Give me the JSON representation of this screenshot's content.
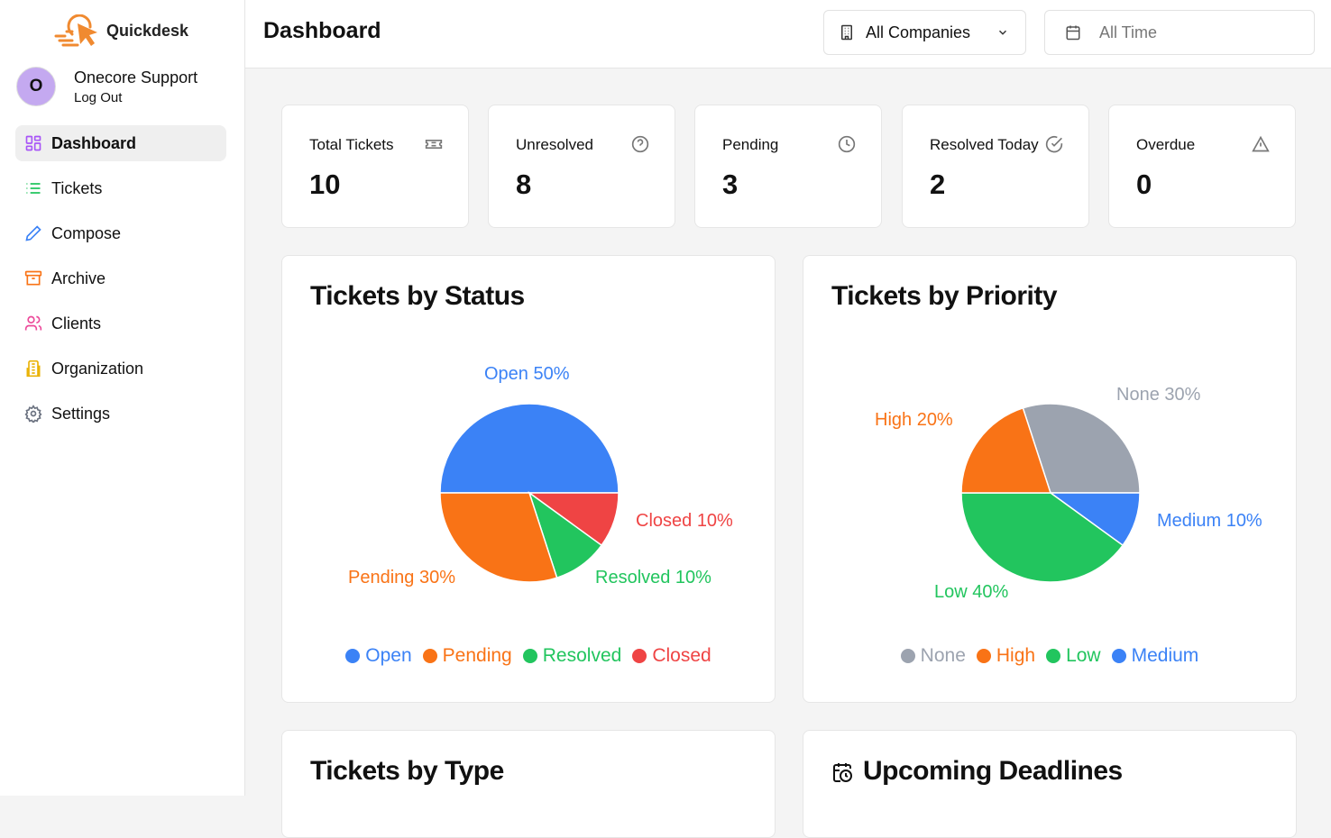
{
  "app": {
    "name": "Quickdesk"
  },
  "user": {
    "initial": "O",
    "name": "Onecore Support",
    "logout": "Log Out"
  },
  "nav": [
    {
      "label": "Dashboard",
      "icon": "grid-icon",
      "color": "#a855f7"
    },
    {
      "label": "Tickets",
      "icon": "list-icon",
      "color": "#22c55e"
    },
    {
      "label": "Compose",
      "icon": "pencil-icon",
      "color": "#3b82f6"
    },
    {
      "label": "Archive",
      "icon": "archive-icon",
      "color": "#f97316"
    },
    {
      "label": "Clients",
      "icon": "users-icon",
      "color": "#ec4899"
    },
    {
      "label": "Organization",
      "icon": "building-icon",
      "color": "#eab308"
    },
    {
      "label": "Settings",
      "icon": "gear-icon",
      "color": "#6b7280"
    }
  ],
  "header": {
    "title": "Dashboard",
    "company_filter": "All Companies",
    "date_filter": "All Time"
  },
  "stats": [
    {
      "label": "Total Tickets",
      "value": "10",
      "icon": "ticket-icon"
    },
    {
      "label": "Unresolved",
      "value": "8",
      "icon": "help-circle-icon"
    },
    {
      "label": "Pending",
      "value": "3",
      "icon": "clock-icon"
    },
    {
      "label": "Resolved Today",
      "value": "2",
      "icon": "check-circle-icon"
    },
    {
      "label": "Overdue",
      "value": "0",
      "icon": "warning-icon"
    }
  ],
  "chart_data": [
    {
      "type": "pie",
      "title": "Tickets by Status",
      "slices": [
        {
          "name": "Open",
          "value": 50,
          "label": "Open 50%",
          "color": "#3b82f6"
        },
        {
          "name": "Pending",
          "value": 30,
          "label": "Pending 30%",
          "color": "#f97316"
        },
        {
          "name": "Resolved",
          "value": 10,
          "label": "Resolved 10%",
          "color": "#22c55e"
        },
        {
          "name": "Closed",
          "value": 10,
          "label": "Closed 10%",
          "color": "#ef4444"
        }
      ],
      "legend": "bottom"
    },
    {
      "type": "pie",
      "title": "Tickets by Priority",
      "slices": [
        {
          "name": "None",
          "value": 30,
          "label": "None 30%",
          "color": "#9ca3af"
        },
        {
          "name": "High",
          "value": 20,
          "label": "High 20%",
          "color": "#f97316"
        },
        {
          "name": "Low",
          "value": 40,
          "label": "Low 40%",
          "color": "#22c55e"
        },
        {
          "name": "Medium",
          "value": 10,
          "label": "Medium 10%",
          "color": "#3b82f6"
        }
      ],
      "legend": "bottom"
    }
  ],
  "bottom_cards": {
    "type_title": "Tickets by Type",
    "deadlines_title": "Upcoming Deadlines"
  }
}
